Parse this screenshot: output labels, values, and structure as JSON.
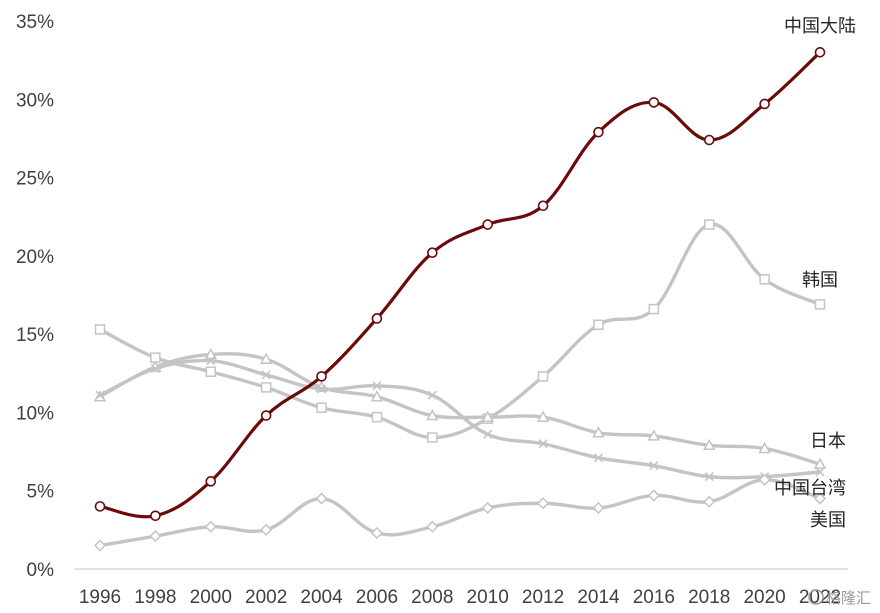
{
  "chart_data": {
    "type": "line",
    "x": [
      1996,
      1998,
      2000,
      2002,
      2004,
      2006,
      2008,
      2010,
      2012,
      2014,
      2016,
      2018,
      2020,
      2022
    ],
    "x_tick_labels": [
      "1996",
      "1998",
      "2000",
      "2002",
      "2004",
      "2006",
      "2008",
      "2010",
      "2012",
      "2014",
      "2016",
      "2018",
      "2020",
      "2022"
    ],
    "y_tick_labels": [
      "0%",
      "5%",
      "10%",
      "15%",
      "20%",
      "25%",
      "30%",
      "35%"
    ],
    "ylim": [
      0,
      35
    ],
    "grid": false,
    "series": [
      {
        "name": "中国大陆",
        "color": "#6b0a0a",
        "marker": "circle",
        "values": [
          4.0,
          3.4,
          5.6,
          9.8,
          12.3,
          16.0,
          20.2,
          22.0,
          23.2,
          27.9,
          29.8,
          27.4,
          29.7,
          33.0
        ]
      },
      {
        "name": "韩国",
        "color": "#c4c4c4",
        "marker": "square",
        "values": [
          15.3,
          13.5,
          12.6,
          11.6,
          10.3,
          9.7,
          8.4,
          9.6,
          12.3,
          15.6,
          16.6,
          22.0,
          18.5,
          16.9
        ]
      },
      {
        "name": "日本",
        "color": "#c4c4c4",
        "marker": "triangle",
        "values": [
          11.0,
          12.9,
          13.7,
          13.4,
          11.6,
          11.0,
          9.8,
          9.7,
          9.7,
          8.7,
          8.5,
          7.9,
          7.7,
          6.7
        ]
      },
      {
        "name": "中国台湾",
        "color": "#c4c4c4",
        "marker": "x",
        "values": [
          11.1,
          12.8,
          13.3,
          12.4,
          11.5,
          11.7,
          11.1,
          8.6,
          8.0,
          7.1,
          6.6,
          5.9,
          5.9,
          6.2
        ]
      },
      {
        "name": "美国",
        "color": "#c4c4c4",
        "marker": "diamond",
        "values": [
          1.5,
          2.1,
          2.7,
          2.5,
          4.5,
          2.3,
          2.7,
          3.9,
          4.2,
          3.9,
          4.7,
          4.3,
          5.7,
          4.5
        ]
      }
    ]
  },
  "watermark": "格隆汇"
}
